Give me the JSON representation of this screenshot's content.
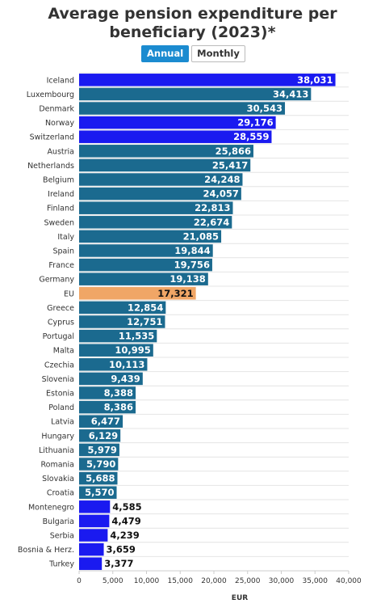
{
  "title_line1": "Average pension expenditure per",
  "title_line2": "beneficiary (2023)*",
  "toggle": {
    "annual_label": "Annual",
    "monthly_label": "Monthly",
    "selected": "Annual"
  },
  "colors": {
    "default": "#1b6a8f",
    "highlight": "#1a1af0",
    "eu": "#f0a666",
    "label_inside": "#ffffff",
    "label_outside": "#111111"
  },
  "chart_data": {
    "type": "bar",
    "orientation": "horizontal",
    "categories": [
      "Iceland",
      "Luxembourg",
      "Denmark",
      "Norway",
      "Switzerland",
      "Austria",
      "Netherlands",
      "Belgium",
      "Ireland",
      "Finland",
      "Sweden",
      "Italy",
      "Spain",
      "France",
      "Germany",
      "EU",
      "Greece",
      "Cyprus",
      "Portugal",
      "Malta",
      "Czechia",
      "Slovenia",
      "Estonia",
      "Poland",
      "Latvia",
      "Hungary",
      "Lithuania",
      "Romania",
      "Slovakia",
      "Croatia",
      "Montenegro",
      "Bulgaria",
      "Serbia",
      "Bosnia & Herz.",
      "Turkey"
    ],
    "values": [
      38031,
      34413,
      30543,
      29176,
      28559,
      25866,
      25417,
      24248,
      24057,
      22813,
      22674,
      21085,
      19844,
      19756,
      19138,
      17321,
      12854,
      12751,
      11535,
      10995,
      10113,
      9439,
      8388,
      8386,
      6477,
      6129,
      5979,
      5790,
      5688,
      5570,
      4585,
      4479,
      4239,
      3659,
      3377
    ],
    "value_labels": [
      "38,031",
      "34,413",
      "30,543",
      "29,176",
      "28,559",
      "25,866",
      "25,417",
      "24,248",
      "24,057",
      "22,813",
      "22,674",
      "21,085",
      "19,844",
      "19,756",
      "19,138",
      "17,321",
      "12,854",
      "12,751",
      "11,535",
      "10,995",
      "10,113",
      "9,439",
      "8,388",
      "8,386",
      "6,477",
      "6,129",
      "5,979",
      "5,790",
      "5,688",
      "5,570",
      "4,585",
      "4,479",
      "4,239",
      "3,659",
      "3,377"
    ],
    "groups": [
      "highlight",
      "default",
      "default",
      "highlight",
      "highlight",
      "default",
      "default",
      "default",
      "default",
      "default",
      "default",
      "default",
      "default",
      "default",
      "default",
      "eu",
      "default",
      "default",
      "default",
      "default",
      "default",
      "default",
      "default",
      "default",
      "default",
      "default",
      "default",
      "default",
      "default",
      "default",
      "highlight",
      "highlight",
      "highlight",
      "highlight",
      "highlight"
    ],
    "xlim": [
      0,
      40000
    ],
    "xticks": [
      0,
      5000,
      10000,
      15000,
      20000,
      25000,
      30000,
      35000,
      40000
    ],
    "xtick_labels": [
      "0",
      "5,000",
      "10,000",
      "15,000",
      "20,000",
      "25,000",
      "30,000",
      "35,000",
      "40,000"
    ],
    "xlabel": "EUR",
    "ylabel": "",
    "grid": true
  }
}
